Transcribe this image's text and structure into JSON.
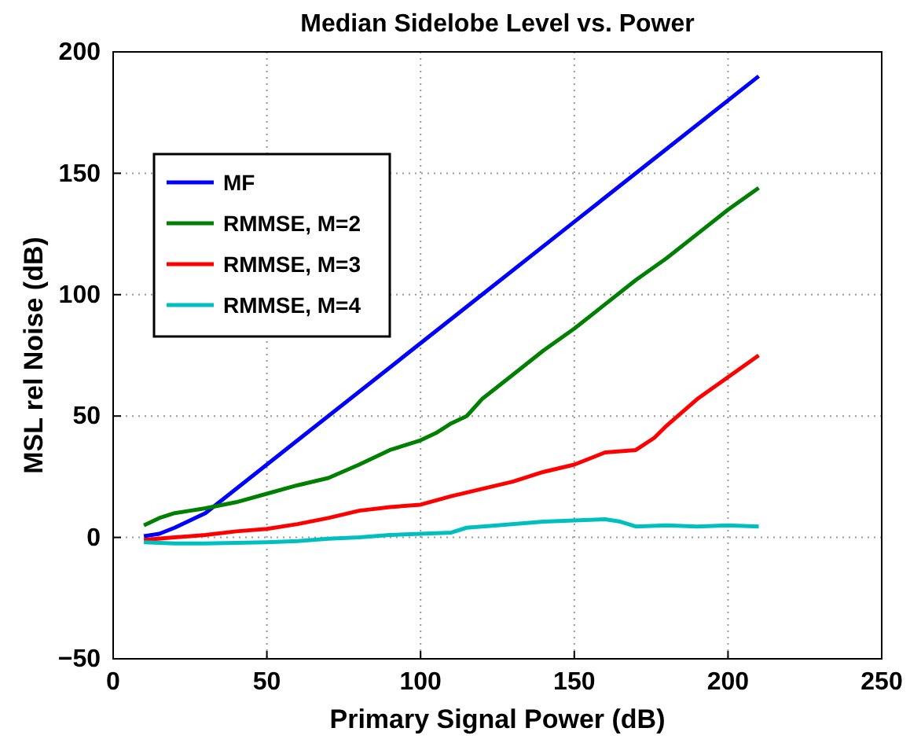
{
  "chart_data": {
    "type": "line",
    "title": "Median Sidelobe Level vs. Power",
    "xlabel": "Primary Signal Power (dB)",
    "ylabel": "MSL rel Noise (dB)",
    "xlim": [
      0,
      250
    ],
    "xticks": [
      0,
      50,
      100,
      150,
      200,
      250
    ],
    "ylim": [
      -50,
      200
    ],
    "yticks": [
      -50,
      0,
      50,
      100,
      150,
      200
    ],
    "grid": true,
    "legend": "top left",
    "line_style": "solid",
    "marker": "none",
    "series": [
      {
        "name": "MF",
        "color": "#0000ff",
        "x": [
          10,
          15,
          20,
          25,
          30,
          60,
          90,
          120,
          150,
          180,
          210
        ],
        "values": [
          0.5,
          1.5,
          4,
          7,
          10,
          40,
          70,
          100,
          130,
          160,
          190
        ]
      },
      {
        "name": "RMMSE, M=2",
        "color": "#008000",
        "x": [
          10,
          15,
          20,
          25,
          30,
          40,
          50,
          60,
          70,
          80,
          85,
          90,
          100,
          105,
          110,
          115,
          120,
          130,
          140,
          150,
          160,
          170,
          180,
          190,
          200,
          210
        ],
        "values": [
          5,
          8,
          10,
          11,
          12,
          14.5,
          18,
          21.5,
          24.5,
          30,
          33,
          36,
          40,
          43,
          47,
          50,
          57,
          67,
          77,
          86,
          96,
          106,
          115,
          125,
          135,
          144
        ]
      },
      {
        "name": "RMMSE, M=3",
        "color": "#ff0000",
        "x": [
          10,
          20,
          30,
          40,
          50,
          60,
          70,
          80,
          90,
          100,
          110,
          120,
          130,
          140,
          150,
          160,
          170,
          176,
          180,
          190,
          200,
          210
        ],
        "values": [
          -1,
          0,
          1,
          2.5,
          3.5,
          5.5,
          8,
          11,
          12.5,
          13.5,
          17,
          20,
          23,
          27,
          30,
          35,
          36,
          41,
          46,
          57,
          66,
          75
        ]
      },
      {
        "name": "RMMSE, M=4",
        "color": "#00bfbf",
        "x": [
          10,
          20,
          30,
          50,
          60,
          70,
          80,
          90,
          100,
          110,
          115,
          125,
          140,
          150,
          160,
          165,
          170,
          180,
          190,
          200,
          210
        ],
        "values": [
          -2,
          -2.5,
          -2.5,
          -2,
          -1.5,
          -0.5,
          0,
          1,
          1.5,
          2,
          4,
          5,
          6.5,
          7,
          7.5,
          6.5,
          4.5,
          5,
          4.5,
          5,
          4.5
        ]
      }
    ]
  }
}
